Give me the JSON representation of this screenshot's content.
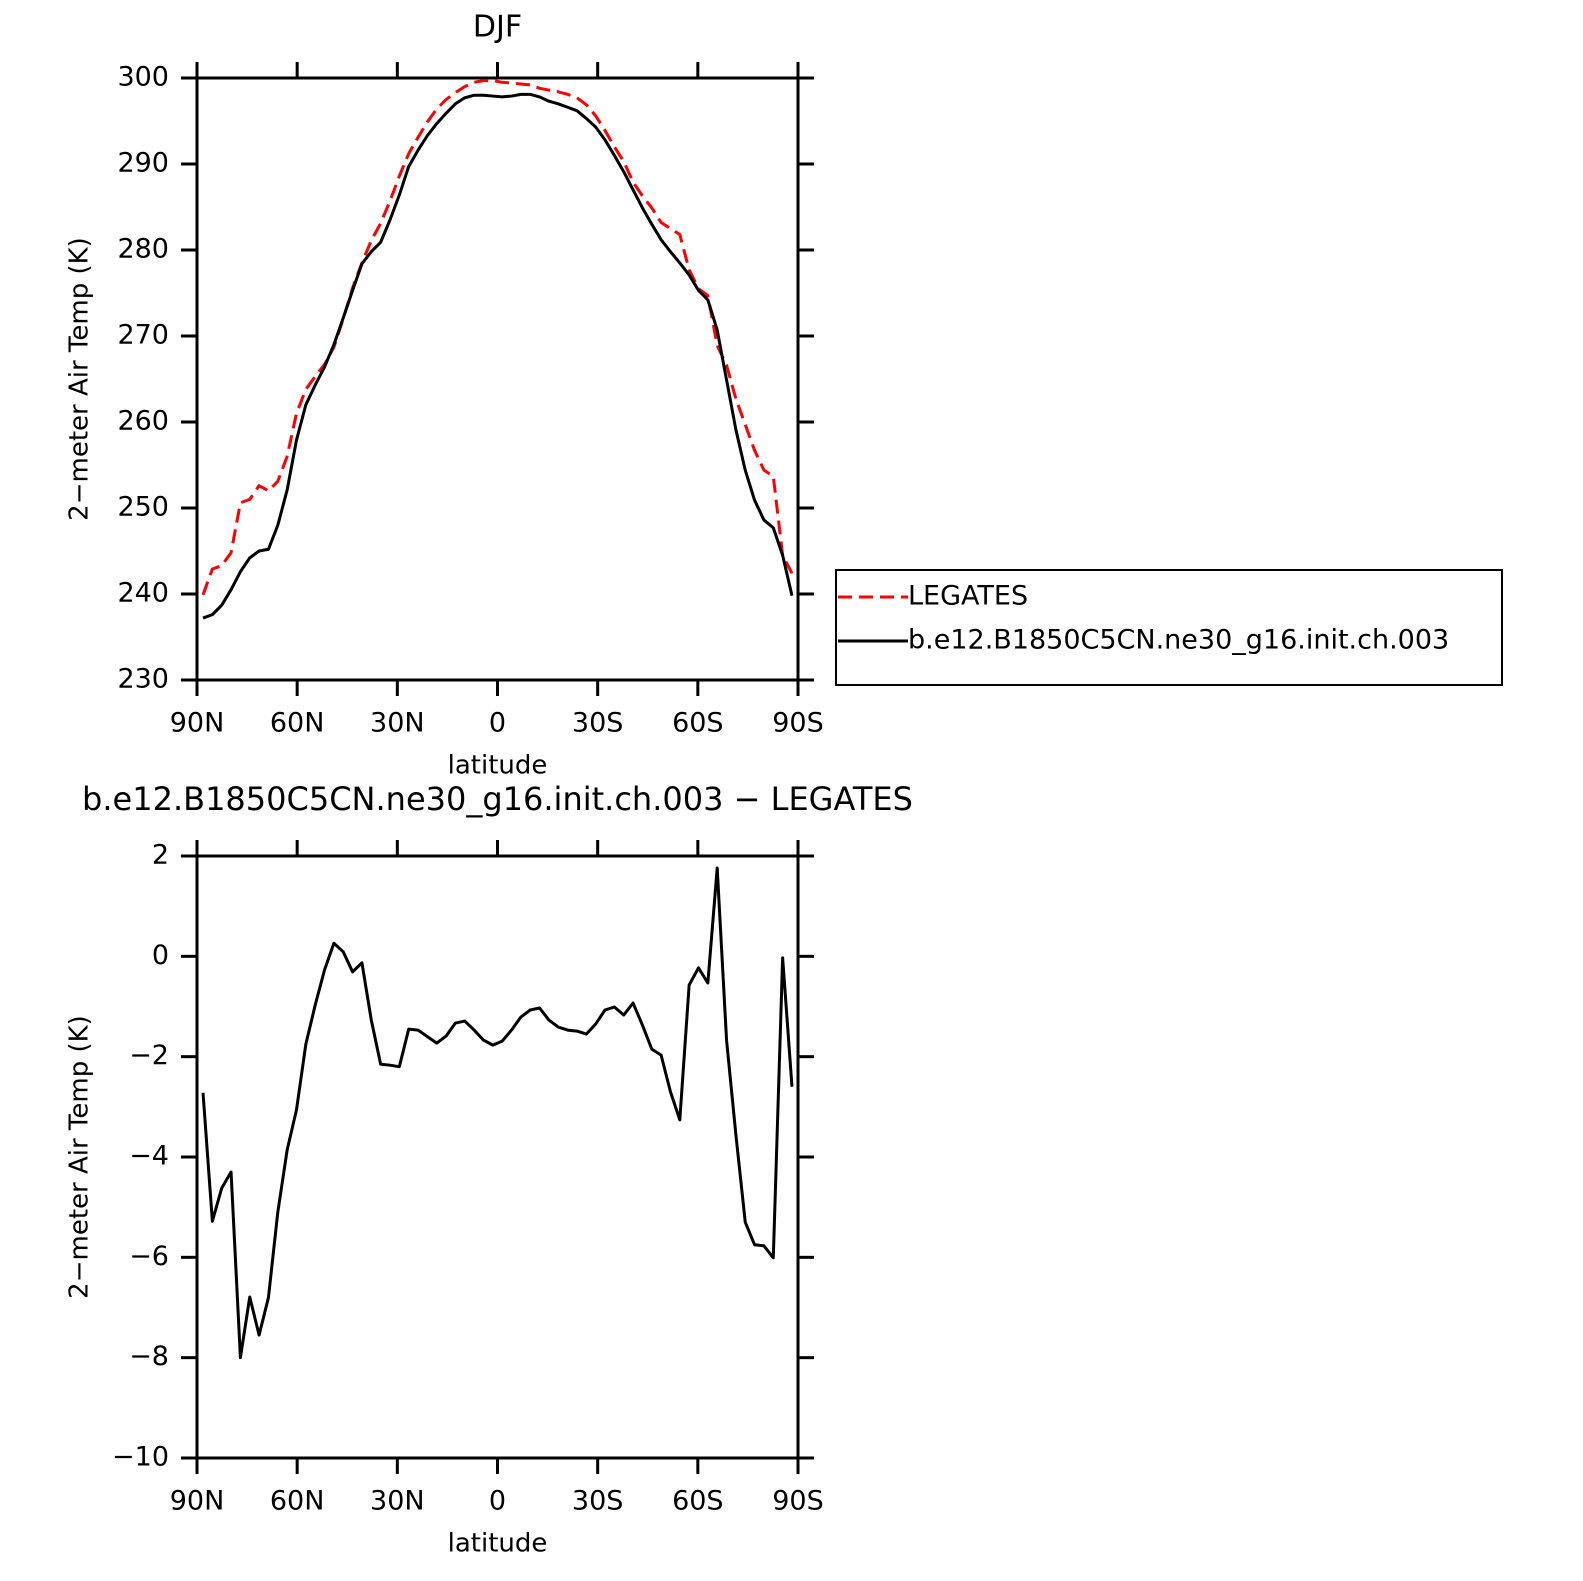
{
  "chart_data": [
    {
      "type": "line",
      "title": "DJF",
      "xlabel": "latitude",
      "ylabel": "2−meter Air Temp (K)",
      "x": [
        88.2,
        85.4,
        82.6,
        79.8,
        77,
        74.2,
        71.4,
        68.6,
        65.8,
        63,
        60.2,
        57.4,
        54.6,
        51.8,
        49,
        46.2,
        43.4,
        40.6,
        37.8,
        35,
        32.2,
        29.4,
        26.6,
        23.8,
        21,
        18.2,
        15.4,
        12.6,
        9.8,
        7,
        4.2,
        1.4,
        -1.4,
        -4.2,
        -7,
        -9.8,
        -12.6,
        -15.4,
        -18.2,
        -21,
        -23.8,
        -26.6,
        -29.4,
        -32.2,
        -35,
        -37.8,
        -40.6,
        -43.4,
        -46.2,
        -49,
        -51.8,
        -54.6,
        -57.4,
        -60.2,
        -63,
        -65.8,
        -68.6,
        -71.4,
        -74.2,
        -77,
        -79.8,
        -82.6,
        -85.4,
        -88.2
      ],
      "series": [
        {
          "name": "LEGATES",
          "color": "#ff0000",
          "linestyle": "dashed",
          "values": [
            239.9,
            242.9,
            243.3,
            244.8,
            250.6,
            251.0,
            252.6,
            252.0,
            253.1,
            256.0,
            261.0,
            263.8,
            265.3,
            266.7,
            268.7,
            272.0,
            275.6,
            278.5,
            281.1,
            283.1,
            285.7,
            288.6,
            291.2,
            293.1,
            294.9,
            296.4,
            297.5,
            298.3,
            299.0,
            299.5,
            299.7,
            299.7,
            299.5,
            299.4,
            299.3,
            299.2,
            298.8,
            298.6,
            298.4,
            298.1,
            297.7,
            296.9,
            295.6,
            293.9,
            292.0,
            290.3,
            287.9,
            286.3,
            284.9,
            283.2,
            282.5,
            281.8,
            277.7,
            275.5,
            274.7,
            268.9,
            266.6,
            262.7,
            259.7,
            256.7,
            254.4,
            253.7,
            244.5,
            242.4
          ]
        },
        {
          "name": "b.e12.B1850C5CN.ne30_g16.init.ch.003",
          "color": "#000000",
          "linestyle": "solid",
          "values": [
            237.2,
            237.6,
            238.7,
            240.5,
            242.6,
            244.2,
            245.0,
            245.2,
            248.0,
            252.1,
            257.9,
            262.0,
            264.3,
            266.4,
            269.0,
            272.1,
            275.3,
            278.4,
            279.8,
            280.9,
            283.5,
            286.4,
            289.7,
            291.6,
            293.3,
            294.7,
            295.9,
            297.0,
            297.7,
            298.0,
            298.0,
            297.9,
            297.8,
            297.9,
            298.1,
            298.1,
            297.8,
            297.3,
            297.0,
            296.6,
            296.2,
            295.3,
            294.3,
            292.8,
            291.0,
            289.1,
            287.0,
            284.9,
            283.0,
            281.2,
            279.8,
            278.5,
            277.1,
            275.3,
            274.2,
            270.7,
            264.9,
            259.1,
            254.4,
            250.9,
            248.6,
            247.7,
            244.5,
            239.8
          ]
        }
      ],
      "xlim": [
        90,
        -90
      ],
      "xticks": [
        {
          "value": 90,
          "label": "90N"
        },
        {
          "value": 60,
          "label": "60N"
        },
        {
          "value": 30,
          "label": "30N"
        },
        0,
        {
          "value": -30,
          "label": "30S"
        },
        {
          "value": -60,
          "label": "60S"
        },
        {
          "value": -90,
          "label": "90S"
        }
      ],
      "ylim": [
        230,
        300
      ],
      "yticks": [
        230,
        240,
        250,
        260,
        270,
        280,
        290,
        300
      ],
      "legend": "right"
    },
    {
      "type": "line",
      "title": "b.e12.B1850C5CN.ne30_g16.init.ch.003 − LEGATES",
      "xlabel": "latitude",
      "ylabel": "2−meter Air Temp (K)",
      "x": [
        88.2,
        85.4,
        82.6,
        79.8,
        77,
        74.2,
        71.4,
        68.6,
        65.8,
        63,
        60.2,
        57.4,
        54.6,
        51.8,
        49,
        46.2,
        43.4,
        40.6,
        37.8,
        35,
        32.2,
        29.4,
        26.6,
        23.8,
        21,
        18.2,
        15.4,
        12.6,
        9.8,
        7,
        4.2,
        1.4,
        -1.4,
        -4.2,
        -7,
        -9.8,
        -12.6,
        -15.4,
        -18.2,
        -21,
        -23.8,
        -26.6,
        -29.4,
        -32.2,
        -35,
        -37.8,
        -40.6,
        -43.4,
        -46.2,
        -49,
        -51.8,
        -54.6,
        -57.4,
        -60.2,
        -63,
        -65.8,
        -68.6,
        -71.4,
        -74.2,
        -77,
        -79.8,
        -82.6,
        -85.4,
        -88.2
      ],
      "color": "#000000",
      "values": [
        -2.72,
        -5.28,
        -4.62,
        -4.3,
        -8.0,
        -6.79,
        -7.55,
        -6.8,
        -5.1,
        -3.86,
        -3.06,
        -1.75,
        -0.97,
        -0.27,
        0.26,
        0.09,
        -0.31,
        -0.13,
        -1.27,
        -2.15,
        -2.17,
        -2.2,
        -1.45,
        -1.47,
        -1.6,
        -1.73,
        -1.59,
        -1.33,
        -1.29,
        -1.47,
        -1.67,
        -1.77,
        -1.69,
        -1.47,
        -1.21,
        -1.07,
        -1.03,
        -1.27,
        -1.41,
        -1.47,
        -1.49,
        -1.55,
        -1.35,
        -1.07,
        -1.01,
        -1.17,
        -0.93,
        -1.37,
        -1.85,
        -1.97,
        -2.7,
        -3.26,
        -0.57,
        -0.23,
        -0.53,
        1.76,
        -1.67,
        -3.56,
        -5.3,
        -5.75,
        -5.77,
        -6.01,
        -0.03,
        -2.6
      ],
      "xlim": [
        90,
        -90
      ],
      "xticks": [
        {
          "value": 90,
          "label": "90N"
        },
        {
          "value": 60,
          "label": "60N"
        },
        {
          "value": 30,
          "label": "30N"
        },
        0,
        {
          "value": -30,
          "label": "30S"
        },
        {
          "value": -60,
          "label": "60S"
        },
        {
          "value": -90,
          "label": "90S"
        }
      ],
      "ylim": [
        -10,
        2
      ],
      "yticks": [
        {
          "value": -10,
          "label": "−10"
        },
        {
          "value": -8,
          "label": "−8"
        },
        {
          "value": -6,
          "label": "−6"
        },
        {
          "value": -4,
          "label": "−4"
        },
        {
          "value": -2,
          "label": "−2"
        },
        0,
        2
      ]
    }
  ]
}
